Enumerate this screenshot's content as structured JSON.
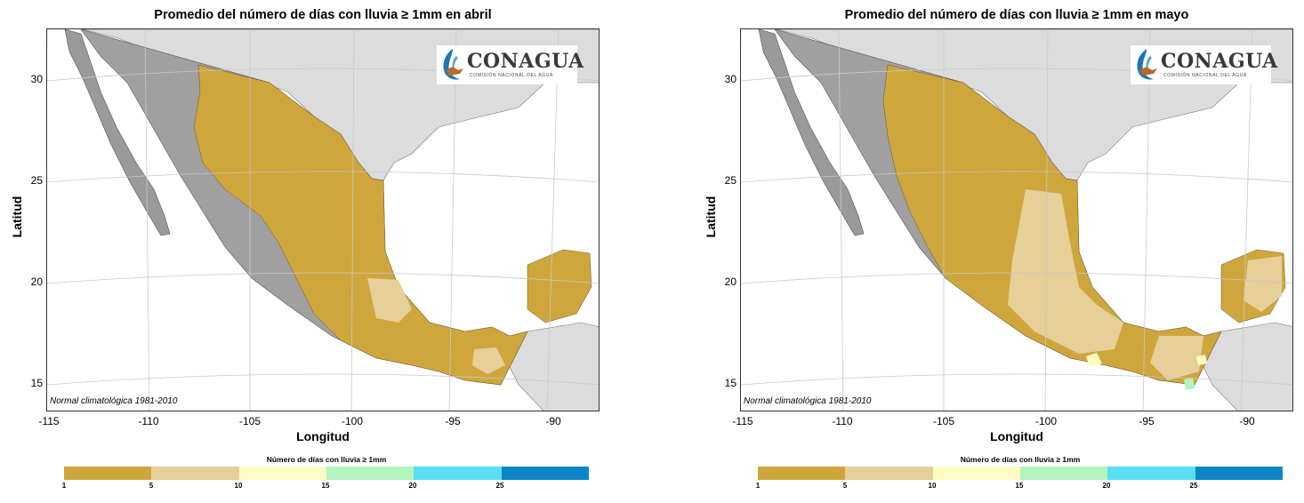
{
  "maps": [
    {
      "title": "Promedio del número de días con lluvia ≥ 1mm en abril",
      "dominant_class": "1 - 5",
      "secondary_class_areas": "Veracruz-Oaxaca and Tabasco-Chiapas patches of 5 - 10",
      "show_relief_west": true
    },
    {
      "title": "Promedio del número de días con lluvia ≥ 1mm en mayo",
      "dominant_class": "1 - 5",
      "secondary_class_areas": "central, southern and Yucatán areas of 5 - 10; small patches of 10 - 15 and 15 - 20",
      "show_relief_west": false
    }
  ],
  "shared": {
    "credit": "Normal climatológica 1981-2010",
    "xlabel": "Longitud",
    "ylabel": "Latitud",
    "x_ticks": [
      "-115",
      "-110",
      "-105",
      "-100",
      "-95",
      "-90"
    ],
    "y_ticks": [
      "30",
      "25",
      "20",
      "15"
    ],
    "logo_text": "CONAGUA",
    "logo_subtitle": "COMISIÓN NACIONAL DEL AGUA",
    "legend_title": "Número de días con lluvia ≥ 1mm",
    "legend_ticks": [
      "1",
      "5",
      "10",
      "15",
      "20",
      "25"
    ],
    "legend_colors": [
      "#cfa63c",
      "#e6cf98",
      "#fdfcc2",
      "#b2f5bf",
      "#58def3",
      "#0a86c6"
    ],
    "land_other_color": "#dcdcdc",
    "sea_color": "#ffffff"
  }
}
